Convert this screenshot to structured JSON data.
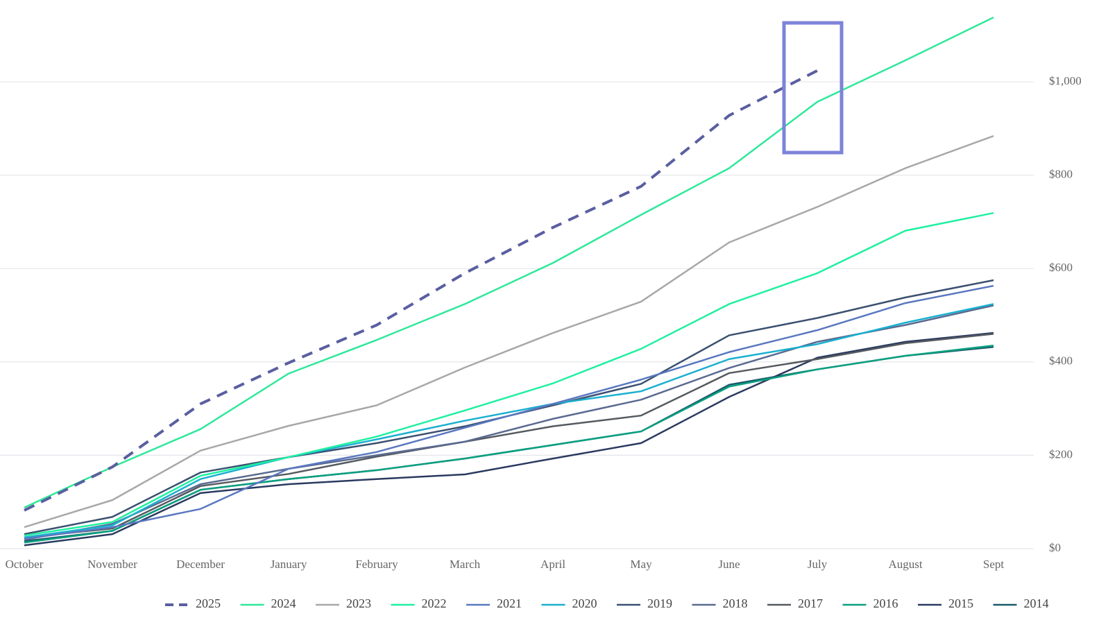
{
  "chart_data": {
    "type": "line",
    "categories": [
      "October",
      "November",
      "December",
      "January",
      "February",
      "March",
      "April",
      "May",
      "June",
      "July",
      "August",
      "Sept"
    ],
    "ylim": [
      0,
      1150
    ],
    "yticks": [
      {
        "value": 0,
        "label": "$0"
      },
      {
        "value": 200,
        "label": "$200"
      },
      {
        "value": 400,
        "label": "$400"
      },
      {
        "value": 600,
        "label": "$600"
      },
      {
        "value": 800,
        "label": "$800"
      },
      {
        "value": 1000,
        "label": "$1,000"
      }
    ],
    "grid": true,
    "legend": "bottom",
    "series": [
      {
        "name": "2025",
        "color": "#5a5fa0",
        "line_style": "dashed",
        "values": [
          82,
          175,
          310,
          398,
          479,
          590,
          688,
          776,
          928,
          1024,
          null,
          null
        ]
      },
      {
        "name": "2024",
        "color": "#2ee89a",
        "values": [
          88,
          175,
          256,
          375,
          447,
          524,
          612,
          715,
          815,
          957,
          1046,
          1138
        ]
      },
      {
        "name": "2023",
        "color": "#a8a8a8",
        "values": [
          46,
          104,
          210,
          263,
          307,
          388,
          462,
          529,
          656,
          732,
          815,
          884
        ]
      },
      {
        "name": "2022",
        "color": "#1ff0a0",
        "values": [
          28,
          57,
          156,
          196,
          240,
          296,
          354,
          428,
          524,
          590,
          681,
          719
        ]
      },
      {
        "name": "2021",
        "color": "#5a78c0",
        "values": [
          21,
          46,
          85,
          171,
          207,
          259,
          310,
          362,
          421,
          468,
          526,
          563
        ]
      },
      {
        "name": "2020",
        "color": "#1ab0d0",
        "values": [
          24,
          50,
          149,
          196,
          234,
          274,
          310,
          337,
          406,
          438,
          484,
          524
        ]
      },
      {
        "name": "2019",
        "color": "#3a5070",
        "values": [
          31,
          68,
          163,
          196,
          226,
          262,
          307,
          353,
          457,
          494,
          538,
          575
        ]
      },
      {
        "name": "2018",
        "color": "#5a6a90",
        "values": [
          19,
          53,
          138,
          171,
          200,
          229,
          278,
          319,
          387,
          443,
          479,
          521
        ]
      },
      {
        "name": "2017",
        "color": "#555a60",
        "values": [
          24,
          43,
          134,
          160,
          197,
          229,
          262,
          285,
          376,
          406,
          440,
          460
        ]
      },
      {
        "name": "2016",
        "color": "#0aa080",
        "values": [
          13,
          38,
          126,
          149,
          168,
          193,
          222,
          251,
          347,
          384,
          413,
          435
        ]
      },
      {
        "name": "2015",
        "color": "#2a3a60",
        "values": [
          7,
          31,
          119,
          138,
          149,
          159,
          193,
          226,
          325,
          409,
          443,
          462
        ]
      },
      {
        "name": "2014",
        "color": "#1a5a6a",
        "values": [
          16,
          38,
          126,
          149,
          168,
          193,
          222,
          251,
          351,
          384,
          413,
          432
        ]
      }
    ]
  }
}
